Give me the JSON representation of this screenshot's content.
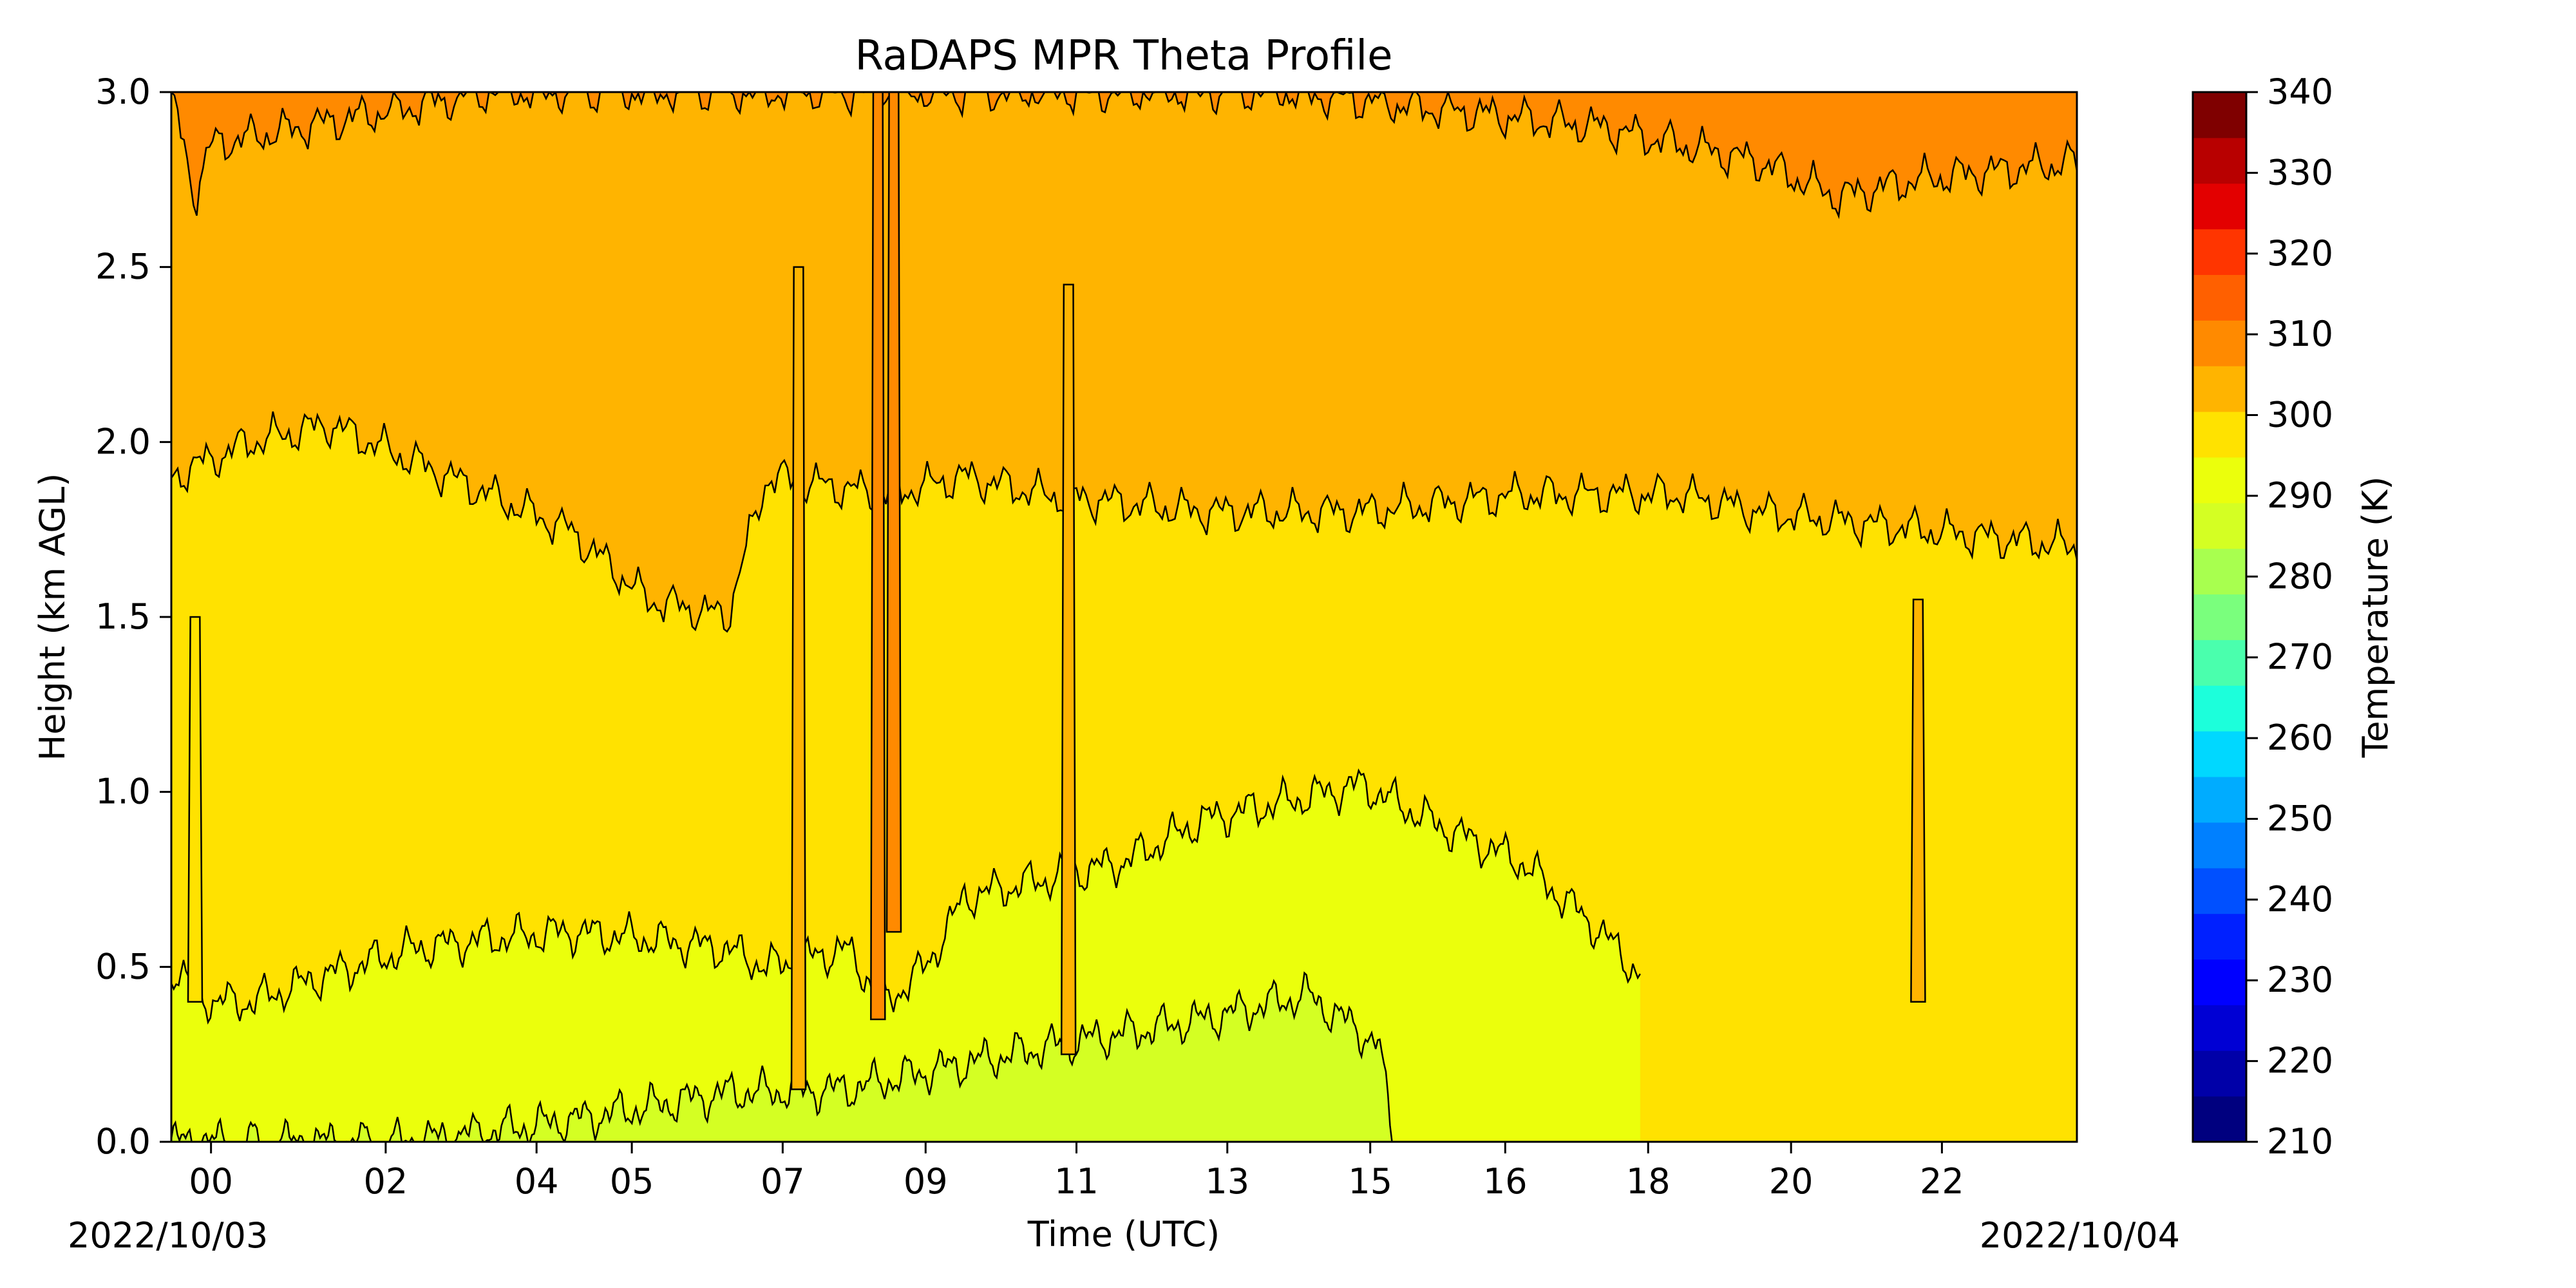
{
  "chart_data": {
    "type": "contour",
    "title": "RaDAPS MPR Theta Profile",
    "xlabel": "Time (UTC)",
    "ylabel": "Height (km AGL)",
    "x_tick_labels": [
      "00",
      "02",
      "04",
      "05",
      "07",
      "09",
      "11",
      "13",
      "15",
      "16",
      "18",
      "20",
      "22"
    ],
    "x_tick_hours": [
      0.5,
      2.7,
      4.6,
      5.8,
      7.7,
      9.5,
      11.4,
      13.3,
      15.1,
      16.8,
      18.6,
      20.4,
      22.3
    ],
    "xlim_hours": [
      0,
      24
    ],
    "start_date_label": "2022/10/03",
    "end_date_label": "2022/10/04",
    "y_ticks": [
      "0.0",
      "0.5",
      "1.0",
      "1.5",
      "2.0",
      "2.5",
      "3.0"
    ],
    "ylim": [
      0,
      3
    ],
    "colorbar": {
      "label": "Temperature (K)",
      "range": [
        210,
        340
      ],
      "step": 5,
      "tick_labels": [
        "210",
        "220",
        "230",
        "240",
        "250",
        "260",
        "270",
        "280",
        "290",
        "300",
        "310",
        "320",
        "330",
        "340"
      ],
      "colors": [
        "#00007f",
        "#0000a8",
        "#0000d4",
        "#0000ff",
        "#0020ff",
        "#0050ff",
        "#0080ff",
        "#00acff",
        "#00d8ff",
        "#1cffdb",
        "#4affad",
        "#7aff7d",
        "#a8ff4f",
        "#d4ff23",
        "#ebff0c",
        "#ffe200",
        "#ffb400",
        "#ff8a00",
        "#ff6000",
        "#ff3500",
        "#e30000",
        "#b80000",
        "#7f0000"
      ]
    },
    "contour_levels": [
      {
        "kelvin": 285,
        "color": "#d4ff23"
      },
      {
        "kelvin": 290,
        "color": "#ebff0c"
      },
      {
        "kelvin": 295,
        "color": "#ffe200"
      },
      {
        "kelvin": 300,
        "color": "#ffb400"
      },
      {
        "kelvin": 305,
        "color": "#ff8a00"
      }
    ],
    "boundary_profiles": [
      {
        "level": 285,
        "points": [
          [
            0,
            0
          ],
          [
            3,
            0
          ],
          [
            5,
            0.06
          ],
          [
            7,
            0.14
          ],
          [
            8.5,
            0.15
          ],
          [
            9.5,
            0.2
          ],
          [
            11,
            0.27
          ],
          [
            13,
            0.35
          ],
          [
            14.3,
            0.42
          ],
          [
            15.2,
            0.28
          ],
          [
            15.4,
            0
          ]
        ]
      },
      {
        "level": 290,
        "points": [
          [
            0,
            0.5
          ],
          [
            0.5,
            0.4
          ],
          [
            1,
            0.4
          ],
          [
            2,
            0.48
          ],
          [
            3,
            0.55
          ],
          [
            4,
            0.58
          ],
          [
            5,
            0.6
          ],
          [
            6,
            0.58
          ],
          [
            7,
            0.55
          ],
          [
            7.5,
            0.5
          ],
          [
            8.5,
            0.55
          ],
          [
            9,
            0.4
          ],
          [
            9.5,
            0.5
          ],
          [
            10,
            0.7
          ],
          [
            11,
            0.75
          ],
          [
            12,
            0.8
          ],
          [
            13,
            0.92
          ],
          [
            14,
            0.97
          ],
          [
            15,
            1.02
          ],
          [
            16,
            0.9
          ],
          [
            17,
            0.8
          ],
          [
            18,
            0.6
          ],
          [
            18.8,
            0.4
          ],
          [
            19,
            0.1
          ],
          [
            18.5,
            0
          ]
        ]
      },
      {
        "level": 295,
        "points": [
          [
            0,
            1.9
          ],
          [
            1,
            2.0
          ],
          [
            2,
            2.05
          ],
          [
            3,
            1.95
          ],
          [
            4,
            1.85
          ],
          [
            5,
            1.75
          ],
          [
            6,
            1.55
          ],
          [
            7,
            1.5
          ],
          [
            7.5,
            1.9
          ],
          [
            9,
            1.85
          ],
          [
            10,
            1.9
          ],
          [
            11,
            1.85
          ],
          [
            13,
            1.8
          ],
          [
            15,
            1.8
          ],
          [
            17,
            1.85
          ],
          [
            19,
            1.85
          ],
          [
            20,
            1.8
          ],
          [
            22,
            1.75
          ],
          [
            24,
            1.7
          ]
        ]
      },
      {
        "level": 300,
        "points": [
          [
            0,
            3.0
          ],
          [
            0.3,
            2.7
          ],
          [
            0.5,
            2.85
          ],
          [
            4,
            3.0
          ],
          [
            8,
            3.0
          ],
          [
            11,
            3.0
          ],
          [
            14,
            3.0
          ],
          [
            16,
            2.95
          ],
          [
            18,
            2.9
          ],
          [
            20,
            2.8
          ],
          [
            21,
            2.7
          ],
          [
            22,
            2.75
          ],
          [
            24,
            2.8
          ]
        ]
      }
    ],
    "spikes": [
      {
        "time_hours": 8.9,
        "level": 300,
        "height_from": 0.35,
        "height_to": 3.0
      },
      {
        "time_hours": 9.1,
        "level": 300,
        "height_from": 0.6,
        "height_to": 3.0
      },
      {
        "time_hours": 7.9,
        "level": 295,
        "height_from": 0.15,
        "height_to": 2.5
      },
      {
        "time_hours": 11.3,
        "level": 295,
        "height_from": 0.25,
        "height_to": 2.45
      },
      {
        "time_hours": 22.0,
        "level": 295,
        "height_from": 0.4,
        "height_to": 1.55
      },
      {
        "time_hours": 0.3,
        "level": 290,
        "height_from": 0.4,
        "height_to": 1.5
      }
    ]
  }
}
